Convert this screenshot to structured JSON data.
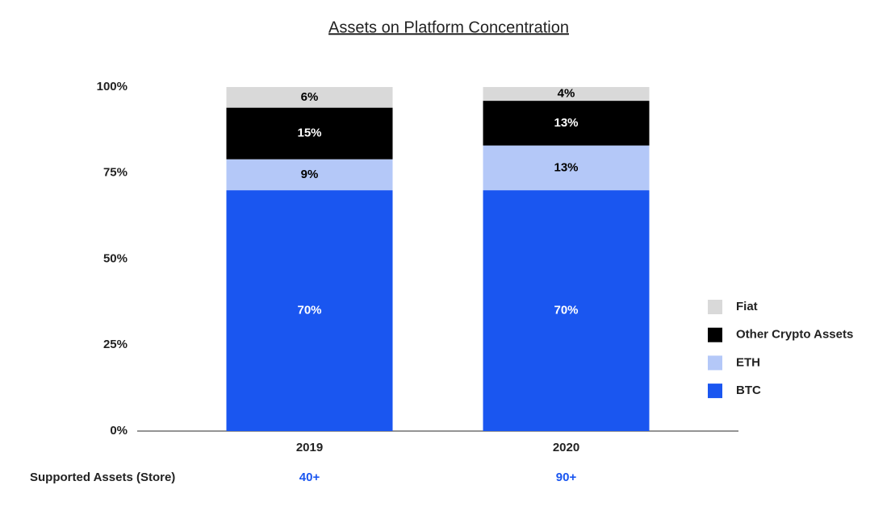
{
  "chart_data": {
    "type": "stacked_bar",
    "title": "Assets on Platform Concentration",
    "categories": [
      "2019",
      "2020"
    ],
    "series": [
      {
        "name": "BTC",
        "color": "#1a56f0",
        "label_color": "#ffffff",
        "values": [
          70,
          70
        ],
        "value_labels": [
          "70%",
          "70%"
        ]
      },
      {
        "name": "ETH",
        "color": "#b4c8f8",
        "label_color": "#000000",
        "values": [
          9,
          13
        ],
        "value_labels": [
          "9%",
          "13%"
        ]
      },
      {
        "name": "Other Crypto Assets",
        "color": "#000000",
        "label_color": "#ffffff",
        "values": [
          15,
          13
        ],
        "value_labels": [
          "15%",
          "13%"
        ]
      },
      {
        "name": "Fiat",
        "color": "#d9d9d9",
        "label_color": "#000000",
        "values": [
          6,
          4
        ],
        "value_labels": [
          "6%",
          "4%"
        ]
      }
    ],
    "ylim": [
      0,
      100
    ],
    "yticks": [
      {
        "value": 0,
        "label": "0%"
      },
      {
        "value": 25,
        "label": "25%"
      },
      {
        "value": 50,
        "label": "50%"
      },
      {
        "value": 75,
        "label": "75%"
      },
      {
        "value": 100,
        "label": "100%"
      }
    ],
    "grid": false,
    "legend": "right",
    "supported_assets": {
      "label": "Supported Assets (Store)",
      "values": [
        "40+",
        "90+"
      ],
      "color": "#1a56f0"
    }
  }
}
